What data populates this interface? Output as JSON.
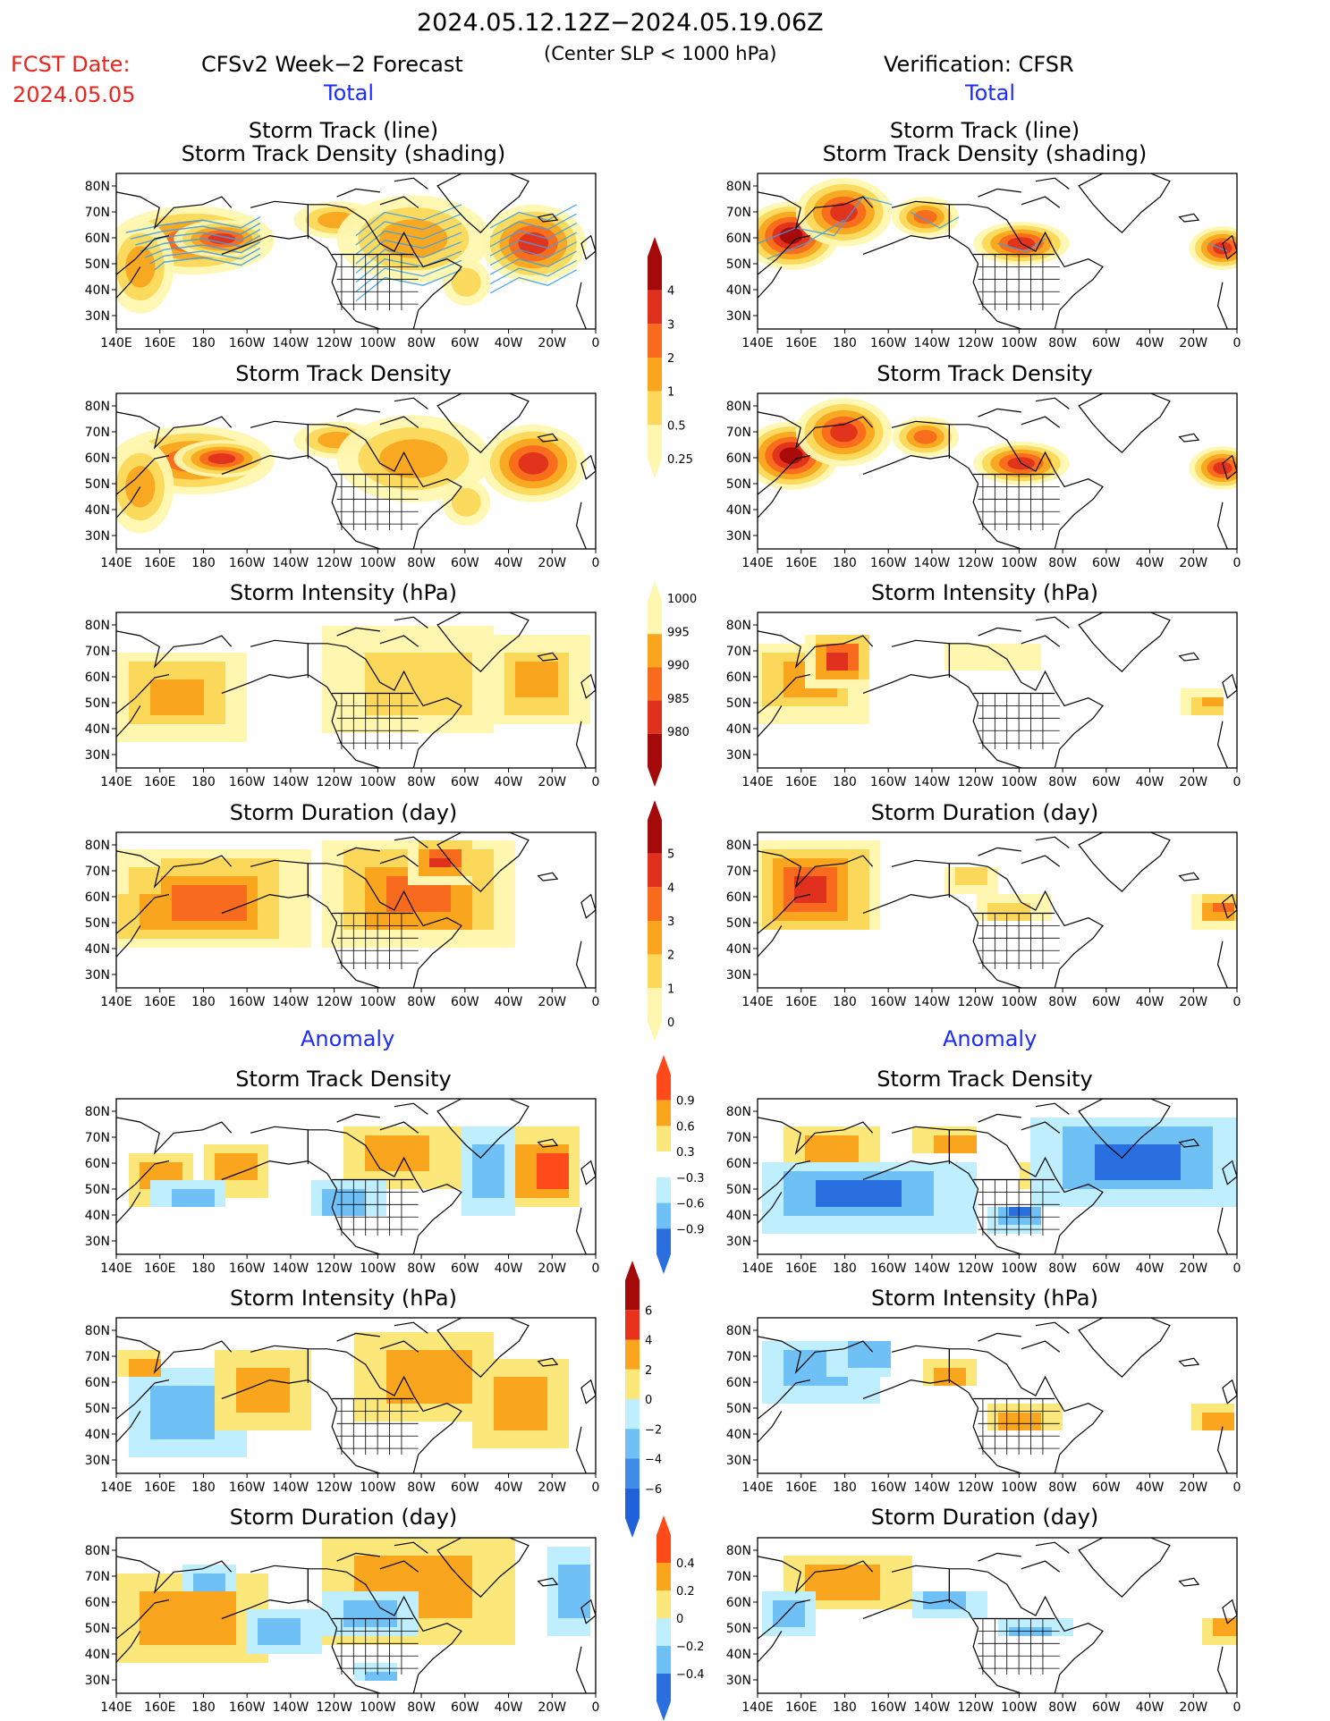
{
  "header": {
    "date_range": "2024.05.12.12Z−2024.05.19.06Z",
    "criterion": "(Center SLP < 1000 hPa)",
    "fcst_label": "FCST Date:",
    "fcst_date": "2024.05.05",
    "left_title": "CFSv2 Week−2 Forecast",
    "right_title": "Verification: CFSR",
    "total_label": "Total",
    "anomaly_label": "Anomaly"
  },
  "titles": {
    "track_line": "Storm Track (line)",
    "track_shading": "Storm Track Density (shading)",
    "density": "Storm Track Density",
    "intensity": "Storm Intensity (hPa)",
    "duration": "Storm Duration (day)"
  },
  "axes": {
    "lon_ticks": [
      "140E",
      "160E",
      "180",
      "160W",
      "140W",
      "120W",
      "100W",
      "80W",
      "60W",
      "40W",
      "20W",
      "0"
    ],
    "lat_ticks": [
      "80N",
      "70N",
      "60N",
      "50N",
      "40N",
      "30N"
    ]
  },
  "colorbars": {
    "total_density": {
      "labels": [
        "4",
        "3",
        "2",
        "1",
        "0.5",
        "0.25"
      ],
      "colors": [
        "#a50a0a",
        "#e0301e",
        "#f86a1e",
        "#f9a61e",
        "#fbd85a",
        "#fff7b0"
      ]
    },
    "total_intensity": {
      "labels": [
        "1000",
        "995",
        "990",
        "985",
        "980"
      ],
      "colors": [
        "#fff7b0",
        "#f9a61e",
        "#f86a1e",
        "#e0301e",
        "#a50a0a"
      ]
    },
    "total_duration": {
      "labels": [
        "5",
        "4",
        "3",
        "2",
        "1",
        "0"
      ],
      "colors": [
        "#a50a0a",
        "#e0301e",
        "#f86a1e",
        "#f9a61e",
        "#fbd85a",
        "#fff7b0"
      ]
    },
    "anom_density": {
      "labels": [
        "0.9",
        "0.6",
        "0.3",
        "−0.3",
        "−0.6",
        "−0.9"
      ],
      "colors": [
        "#ff4b1a",
        "#f9a61e",
        "#fce77a",
        "#ffffff",
        "#bfefff",
        "#6fc0f5",
        "#2a6fe0"
      ]
    },
    "anom_intensity": {
      "labels": [
        "6",
        "4",
        "2",
        "0",
        "−2",
        "−4",
        "−6"
      ],
      "colors": [
        "#a50a0a",
        "#e8321e",
        "#f9a61e",
        "#fce77a",
        "#bfefff",
        "#6fc0f5",
        "#3f8be8",
        "#2060d8"
      ]
    },
    "anom_duration": {
      "labels": [
        "0.4",
        "0.2",
        "0",
        "−0.2",
        "−0.4"
      ],
      "colors": [
        "#ff4b1a",
        "#f9a61e",
        "#fce77a",
        "#bfefff",
        "#6fc0f5",
        "#2a6fe0"
      ]
    }
  },
  "colors": {
    "track_line": "#3fa0e8",
    "coastline": "#000000"
  }
}
